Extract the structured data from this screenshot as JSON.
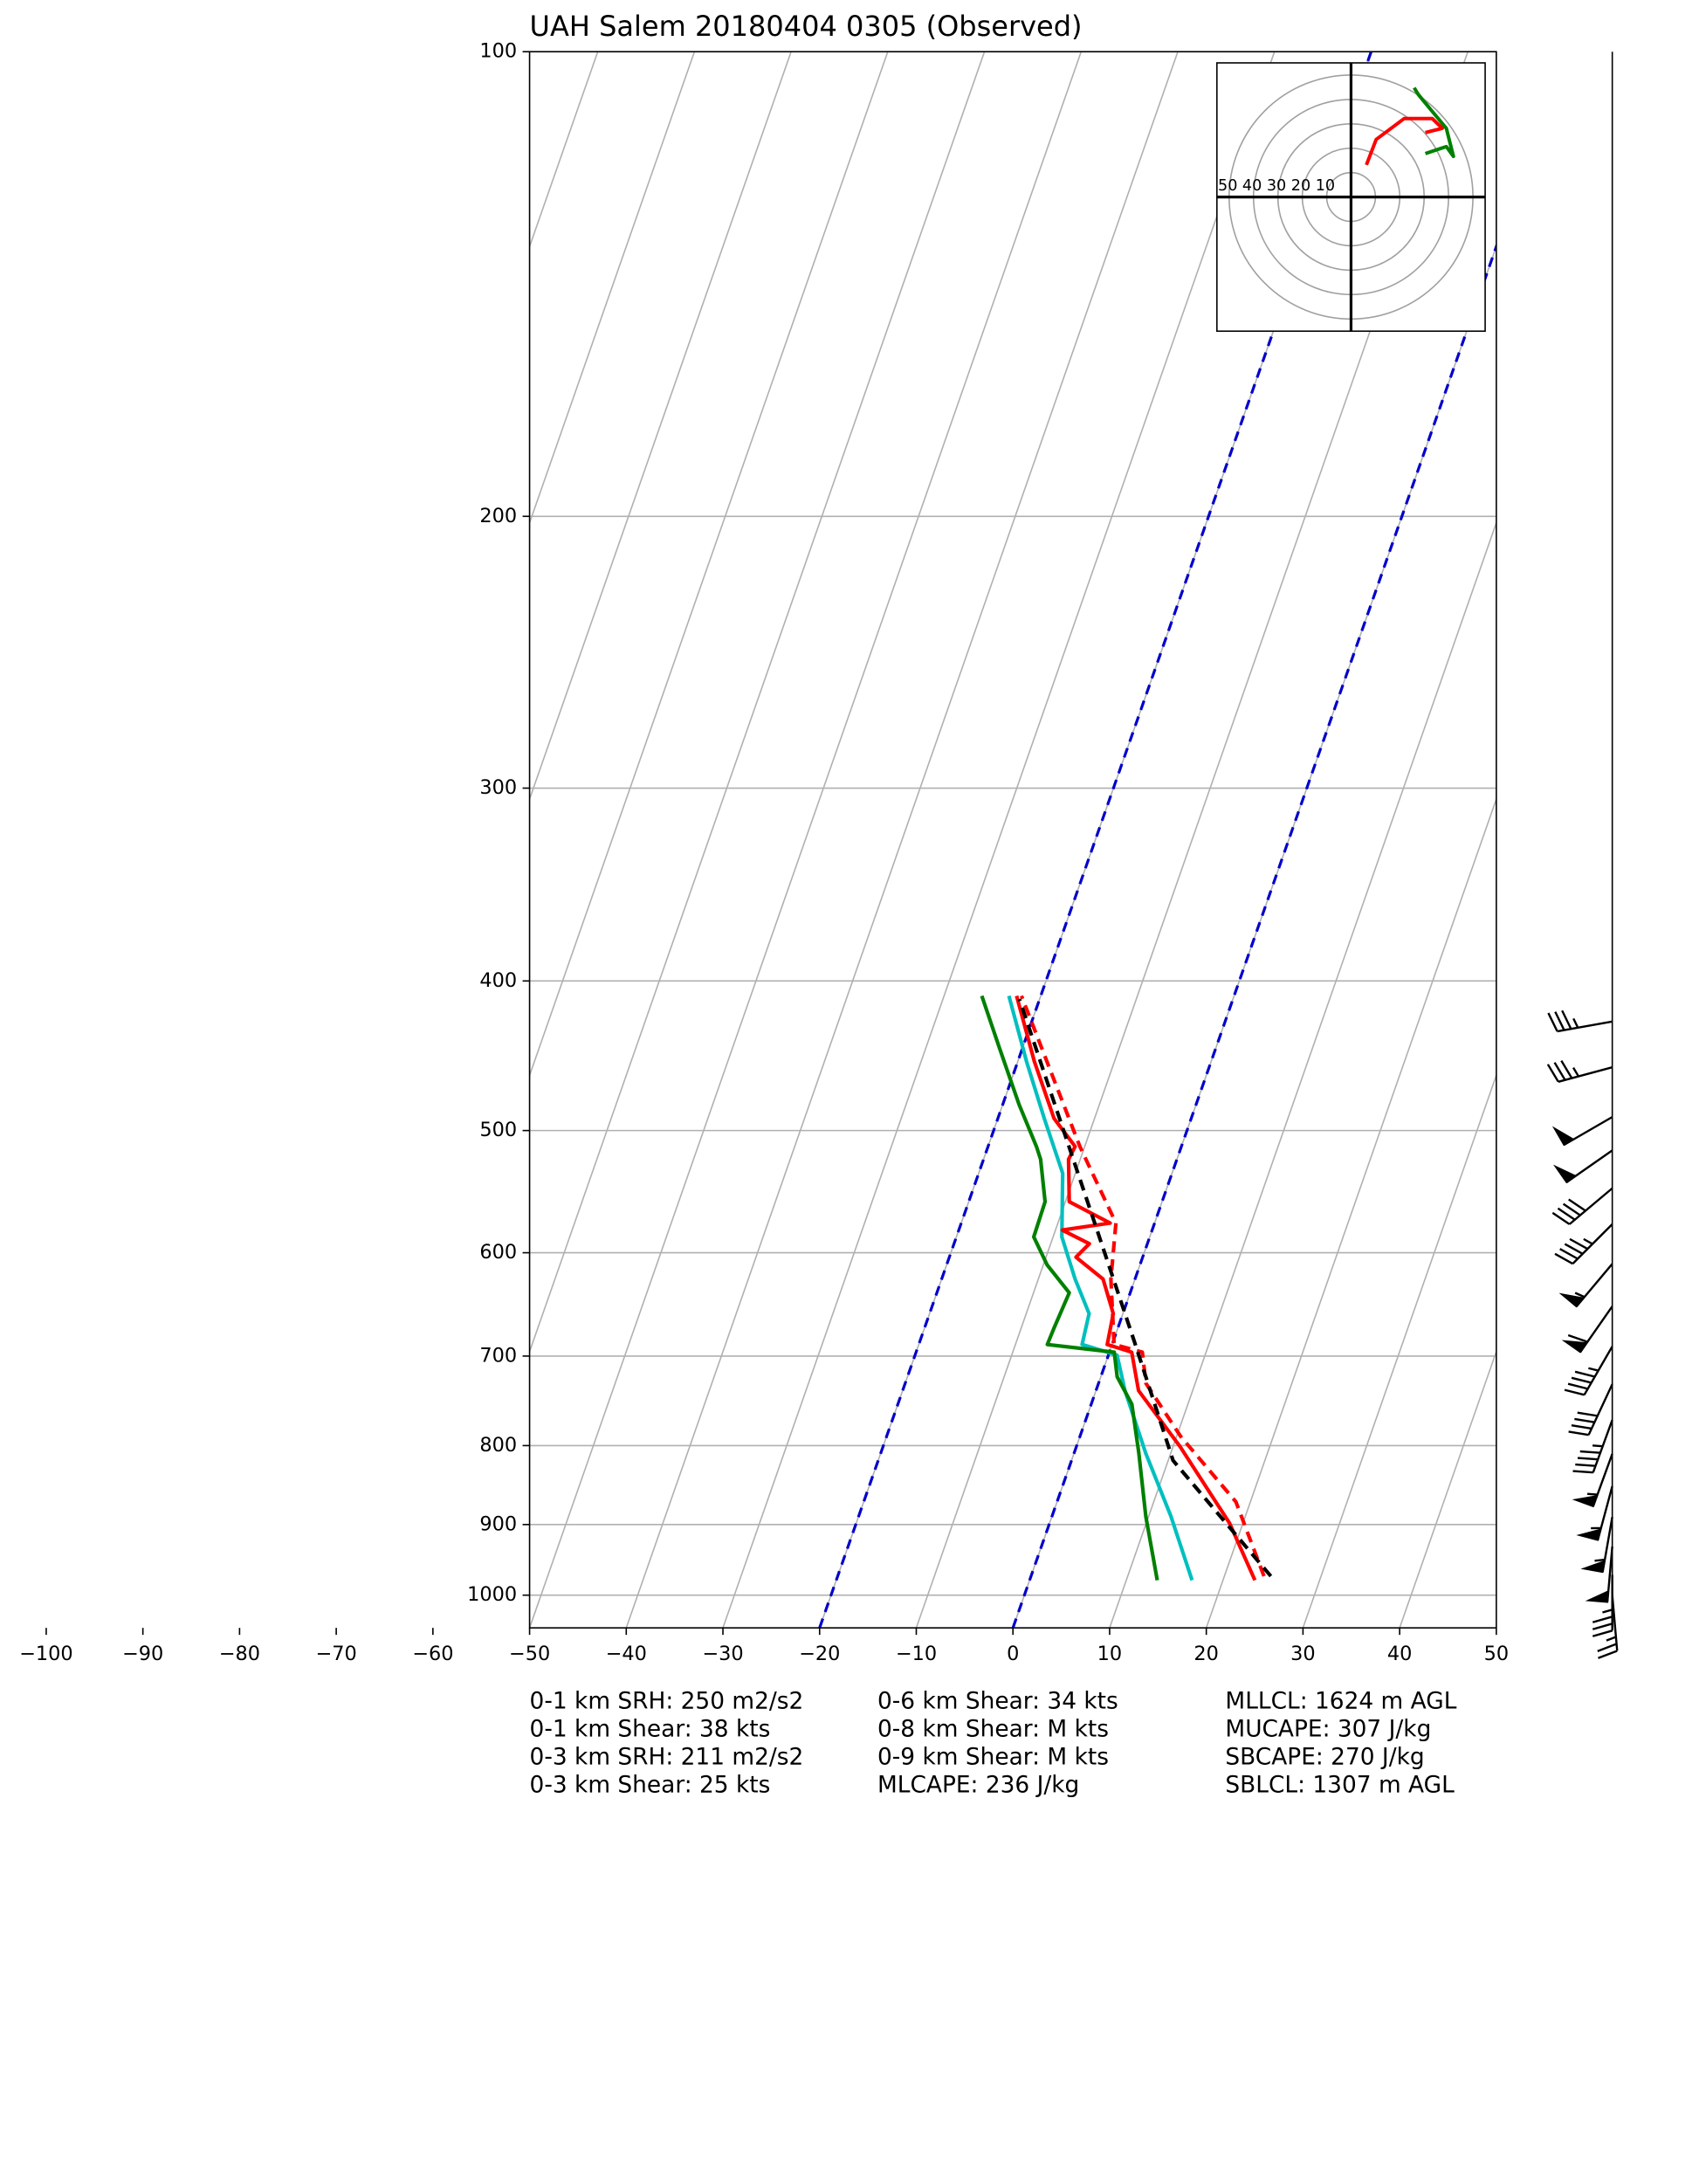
{
  "chart_data": {
    "type": "skewt",
    "title": "UAH Salem 20180404 0305   (Observed)",
    "xlim": [
      -50,
      50
    ],
    "xticks": [
      {
        "value": -100,
        "label": "−100"
      },
      {
        "value": -90,
        "label": "−90"
      },
      {
        "value": -80,
        "label": "−80"
      },
      {
        "value": -70,
        "label": "−70"
      },
      {
        "value": -60,
        "label": "−60"
      },
      {
        "value": -50,
        "label": "−50"
      },
      {
        "value": -40,
        "label": "−40"
      },
      {
        "value": -30,
        "label": "−30"
      },
      {
        "value": -20,
        "label": "−20"
      },
      {
        "value": -10,
        "label": "−10"
      },
      0,
      10,
      20,
      30,
      40,
      50
    ],
    "ylim": [
      1050,
      100
    ],
    "yticks": [
      100,
      200,
      300,
      400,
      500,
      600,
      700,
      800,
      900,
      1000
    ],
    "log_y": true,
    "grid": true,
    "dashed_isotherms": [
      -20,
      0
    ],
    "dashed_isotherm_color": "#0000cc",
    "series": [
      {
        "color": "#00bfbf",
        "style": "solid",
        "pressure": [
          978,
          889,
          809,
          737,
          699,
          688,
          657,
          624,
          586,
          533,
          491,
          451,
          409
        ],
        "values": [
          16.8,
          12.3,
          7.4,
          3.0,
          0.9,
          -3.1,
          -3.5,
          -6.2,
          -9.1,
          -11.3,
          -15.2,
          -19.1,
          -23.3
        ]
      },
      {
        "color": "#ff0000",
        "style": "dashed",
        "pressure": [
          972,
          870,
          789,
          729,
          696,
          688,
          624,
          574,
          512,
          409
        ],
        "values": [
          24.1,
          18.5,
          10.4,
          4.9,
          3.4,
          0.2,
          -2.5,
          -4.0,
          -10.5,
          -22.0
        ]
      },
      {
        "color": "#ff0000",
        "style": "solid",
        "pressure": [
          978,
          898,
          801,
          737,
          696,
          688,
          657,
          624,
          604,
          592,
          580,
          574,
          556,
          522,
          512,
          491,
          451,
          409
        ],
        "values": [
          23.3,
          18.6,
          10.7,
          4.4,
          2.3,
          -0.5,
          -1.0,
          -3.3,
          -6.9,
          -6.0,
          -9.3,
          -4.6,
          -9.6,
          -11.2,
          -11.0,
          -14.2,
          -18.3,
          -22.5
        ]
      },
      {
        "color": "#008000",
        "style": "solid",
        "pressure": [
          978,
          889,
          809,
          752,
          722,
          696,
          688,
          671,
          637,
          611,
          586,
          556,
          522,
          512,
          481,
          442,
          409
        ],
        "values": [
          13.2,
          9.7,
          6.7,
          4.2,
          1.7,
          0.5,
          -6.7,
          -6.6,
          -6.3,
          -9.6,
          -12.0,
          -12.1,
          -14.1,
          -15.0,
          -18.3,
          -22.4,
          -26.1
        ]
      },
      {
        "color": "#000000",
        "style": "dashed",
        "pressure": [
          972,
          818,
          685,
          580,
          411
        ],
        "values": [
          24.8,
          10.5,
          2.2,
          -5.7,
          -22.1
        ]
      }
    ],
    "winds": {
      "pressure": [
        425,
        455,
        490,
        515,
        545,
        575,
        610,
        650,
        690,
        730,
        770,
        810,
        850,
        890,
        930,
        970,
        1000
      ],
      "direction": [
        260,
        255,
        240,
        235,
        230,
        225,
        220,
        215,
        210,
        205,
        200,
        200,
        195,
        190,
        185,
        180,
        175
      ],
      "speed": [
        35,
        35,
        50,
        50,
        40,
        45,
        55,
        60,
        45,
        40,
        45,
        55,
        55,
        55,
        50,
        35,
        25
      ]
    },
    "hodograph": {
      "xlim": [
        -55,
        55
      ],
      "ylim": [
        -55,
        55
      ],
      "rings": [
        50,
        40,
        30,
        20,
        10
      ],
      "series": [
        {
          "color": "#ff0000",
          "u": [
            6.3,
            10.3,
            21.8,
            33.3,
            37.4,
            30.5
          ],
          "v": [
            13.2,
            23.6,
            32.2,
            32.2,
            28.2,
            26.4
          ]
        },
        {
          "color": "#008000",
          "u": [
            30.5,
            39.1,
            42.0,
            39.1,
            33.3,
            27.6,
            25.9
          ],
          "v": [
            17.8,
            20.7,
            16.7,
            28.2,
            35.1,
            42.0,
            44.8
          ]
        }
      ]
    },
    "annotations": [
      "0-1 km SRH: 250 m2/s2",
      "0-1 km Shear: 38 kts",
      "0-3 km SRH: 211 m2/s2",
      "0-3 km Shear: 25 kts",
      "0-6 km Shear: 34 kts",
      "0-8 km Shear: M kts",
      "0-9 km Shear: M kts",
      "MLCAPE: 236 J/kg",
      "MLLCL: 1624 m AGL",
      "MUCAPE: 307 J/kg",
      "SBCAPE: 270 J/kg",
      "SBLCL: 1307 m AGL"
    ]
  }
}
